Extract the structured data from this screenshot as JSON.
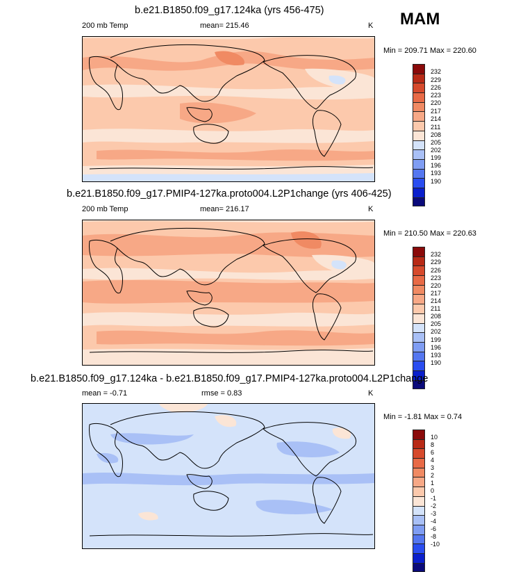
{
  "season_label": "MAM",
  "colors": {
    "abs_colorbar": [
      "#0a0a7a",
      "#0a1fcc",
      "#2a4df0",
      "#5577f0",
      "#7f9df3",
      "#a9c0f6",
      "#d4e3fa",
      "#fbe5d6",
      "#fcc9ac",
      "#f7a886",
      "#f08a63",
      "#e86a46",
      "#d64a2c",
      "#b82a16",
      "#8a0a0a"
    ],
    "diff_colorbar": [
      "#0a0a7a",
      "#0a1fcc",
      "#2a4df0",
      "#5577f0",
      "#7f9df3",
      "#a9c0f6",
      "#d4e3fa",
      "#fbe5d6",
      "#fcc9ac",
      "#f7a886",
      "#f08a63",
      "#e86a46",
      "#d64a2c",
      "#b82a16",
      "#8a0a0a"
    ]
  },
  "chart_data": [
    {
      "type": "heatmap",
      "title": "b.e21.B1850.f09_g17.124ka (yrs 456-475)",
      "variable": "200 mb Temp",
      "mean_text": "mean= 215.46",
      "units": "K",
      "minmax_text": "Min = 209.71 Max = 220.60",
      "min": 209.71,
      "max": 220.6,
      "mean": 215.46,
      "colorbar_levels": [
        "232",
        "229",
        "226",
        "223",
        "220",
        "217",
        "214",
        "211",
        "208",
        "205",
        "202",
        "199",
        "196",
        "193",
        "190"
      ]
    },
    {
      "type": "heatmap",
      "title": "b.e21.B1850.f09_g17.PMIP4-127ka.proto004.L2P1change (yrs 406-425)",
      "variable": "200 mb Temp",
      "mean_text": "mean= 216.17",
      "units": "K",
      "minmax_text": "Min = 210.50 Max = 220.63",
      "min": 210.5,
      "max": 220.63,
      "mean": 216.17,
      "colorbar_levels": [
        "232",
        "229",
        "226",
        "223",
        "220",
        "217",
        "214",
        "211",
        "208",
        "205",
        "202",
        "199",
        "196",
        "193",
        "190"
      ]
    },
    {
      "type": "heatmap",
      "title": "b.e21.B1850.f09_g17.124ka - b.e21.B1850.f09_g17.PMIP4-127ka.proto004.L2P1change",
      "mean_text": "mean =  -0.71",
      "rmse_text": "rmse =   0.83",
      "units": "K",
      "minmax_text": "Min = -1.81 Max =   0.74",
      "min": -1.81,
      "max": 0.74,
      "mean": -0.71,
      "rmse": 0.83,
      "colorbar_levels": [
        "10",
        "8",
        "6",
        "4",
        "3",
        "2",
        "1",
        "0",
        "-1",
        "-2",
        "-3",
        "-4",
        "-6",
        "-8",
        "-10"
      ]
    }
  ]
}
